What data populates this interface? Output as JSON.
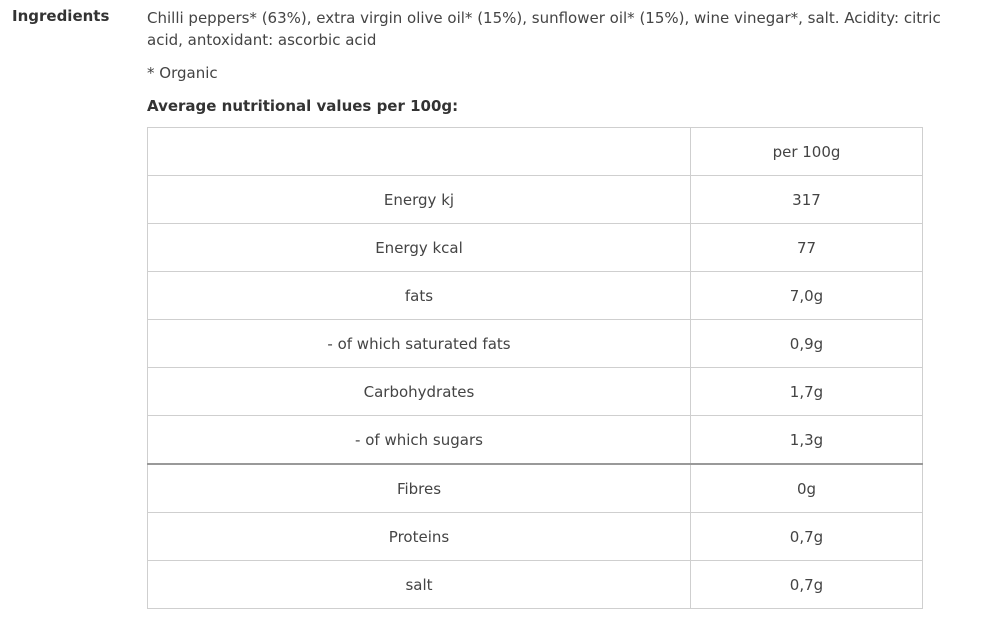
{
  "section_label": "Ingredients",
  "ingredients": "Chilli peppers* (63%), extra virgin olive oil* (15%), sunflower oil* (15%), wine vinegar*, salt. Acidity: citric acid, antoxidant: ascorbic acid",
  "footnote": "* Organic",
  "table_title": "Average nutritional values per 100g:",
  "table": {
    "header": "per 100g",
    "rows": [
      [
        "Energy kj",
        "317"
      ],
      [
        "Energy kcal",
        "77"
      ],
      [
        "fats",
        "7,0g"
      ],
      [
        "- of which saturated fats",
        "0,9g"
      ],
      [
        "Carbohydrates",
        "1,7g"
      ],
      [
        "- of which sugars",
        "1,3g"
      ],
      [
        "Fibres",
        "0g"
      ],
      [
        "Proteins",
        "0,7g"
      ],
      [
        "salt",
        "0,7g"
      ]
    ]
  }
}
